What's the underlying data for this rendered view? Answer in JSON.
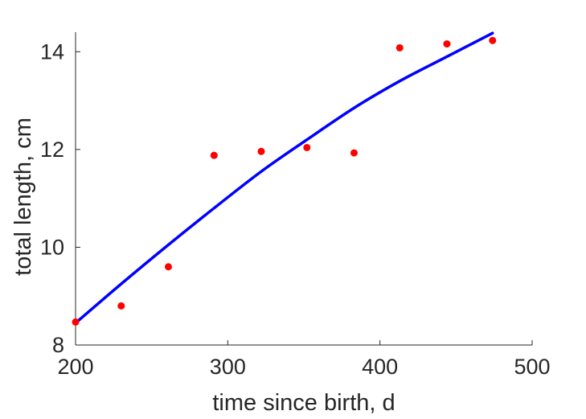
{
  "chart_data": {
    "type": "scatter",
    "title": "",
    "xlabel": "time since birth, d",
    "ylabel": "total length, cm",
    "xlim": [
      200,
      500
    ],
    "ylim": [
      8,
      14.4
    ],
    "xticks": [
      200,
      300,
      400,
      500
    ],
    "yticks": [
      8,
      10,
      12,
      14
    ],
    "grid": false,
    "legend": "none",
    "series": [
      {
        "type": "scatter",
        "color": "#ff0000",
        "points": [
          [
            200,
            8.47
          ],
          [
            230,
            8.8
          ],
          [
            261,
            9.6
          ],
          [
            291,
            11.88
          ],
          [
            322,
            11.96
          ],
          [
            352,
            12.04
          ],
          [
            383,
            11.93
          ],
          [
            413,
            14.08
          ],
          [
            444,
            14.16
          ],
          [
            474,
            14.23
          ]
        ]
      },
      {
        "type": "line",
        "color": "#0000ff",
        "points": [
          [
            200,
            8.45
          ],
          [
            230,
            9.25
          ],
          [
            261,
            10.05
          ],
          [
            291,
            10.8
          ],
          [
            322,
            11.55
          ],
          [
            352,
            12.2
          ],
          [
            383,
            12.85
          ],
          [
            413,
            13.4
          ],
          [
            444,
            13.9
          ],
          [
            474,
            14.38
          ]
        ]
      }
    ]
  }
}
